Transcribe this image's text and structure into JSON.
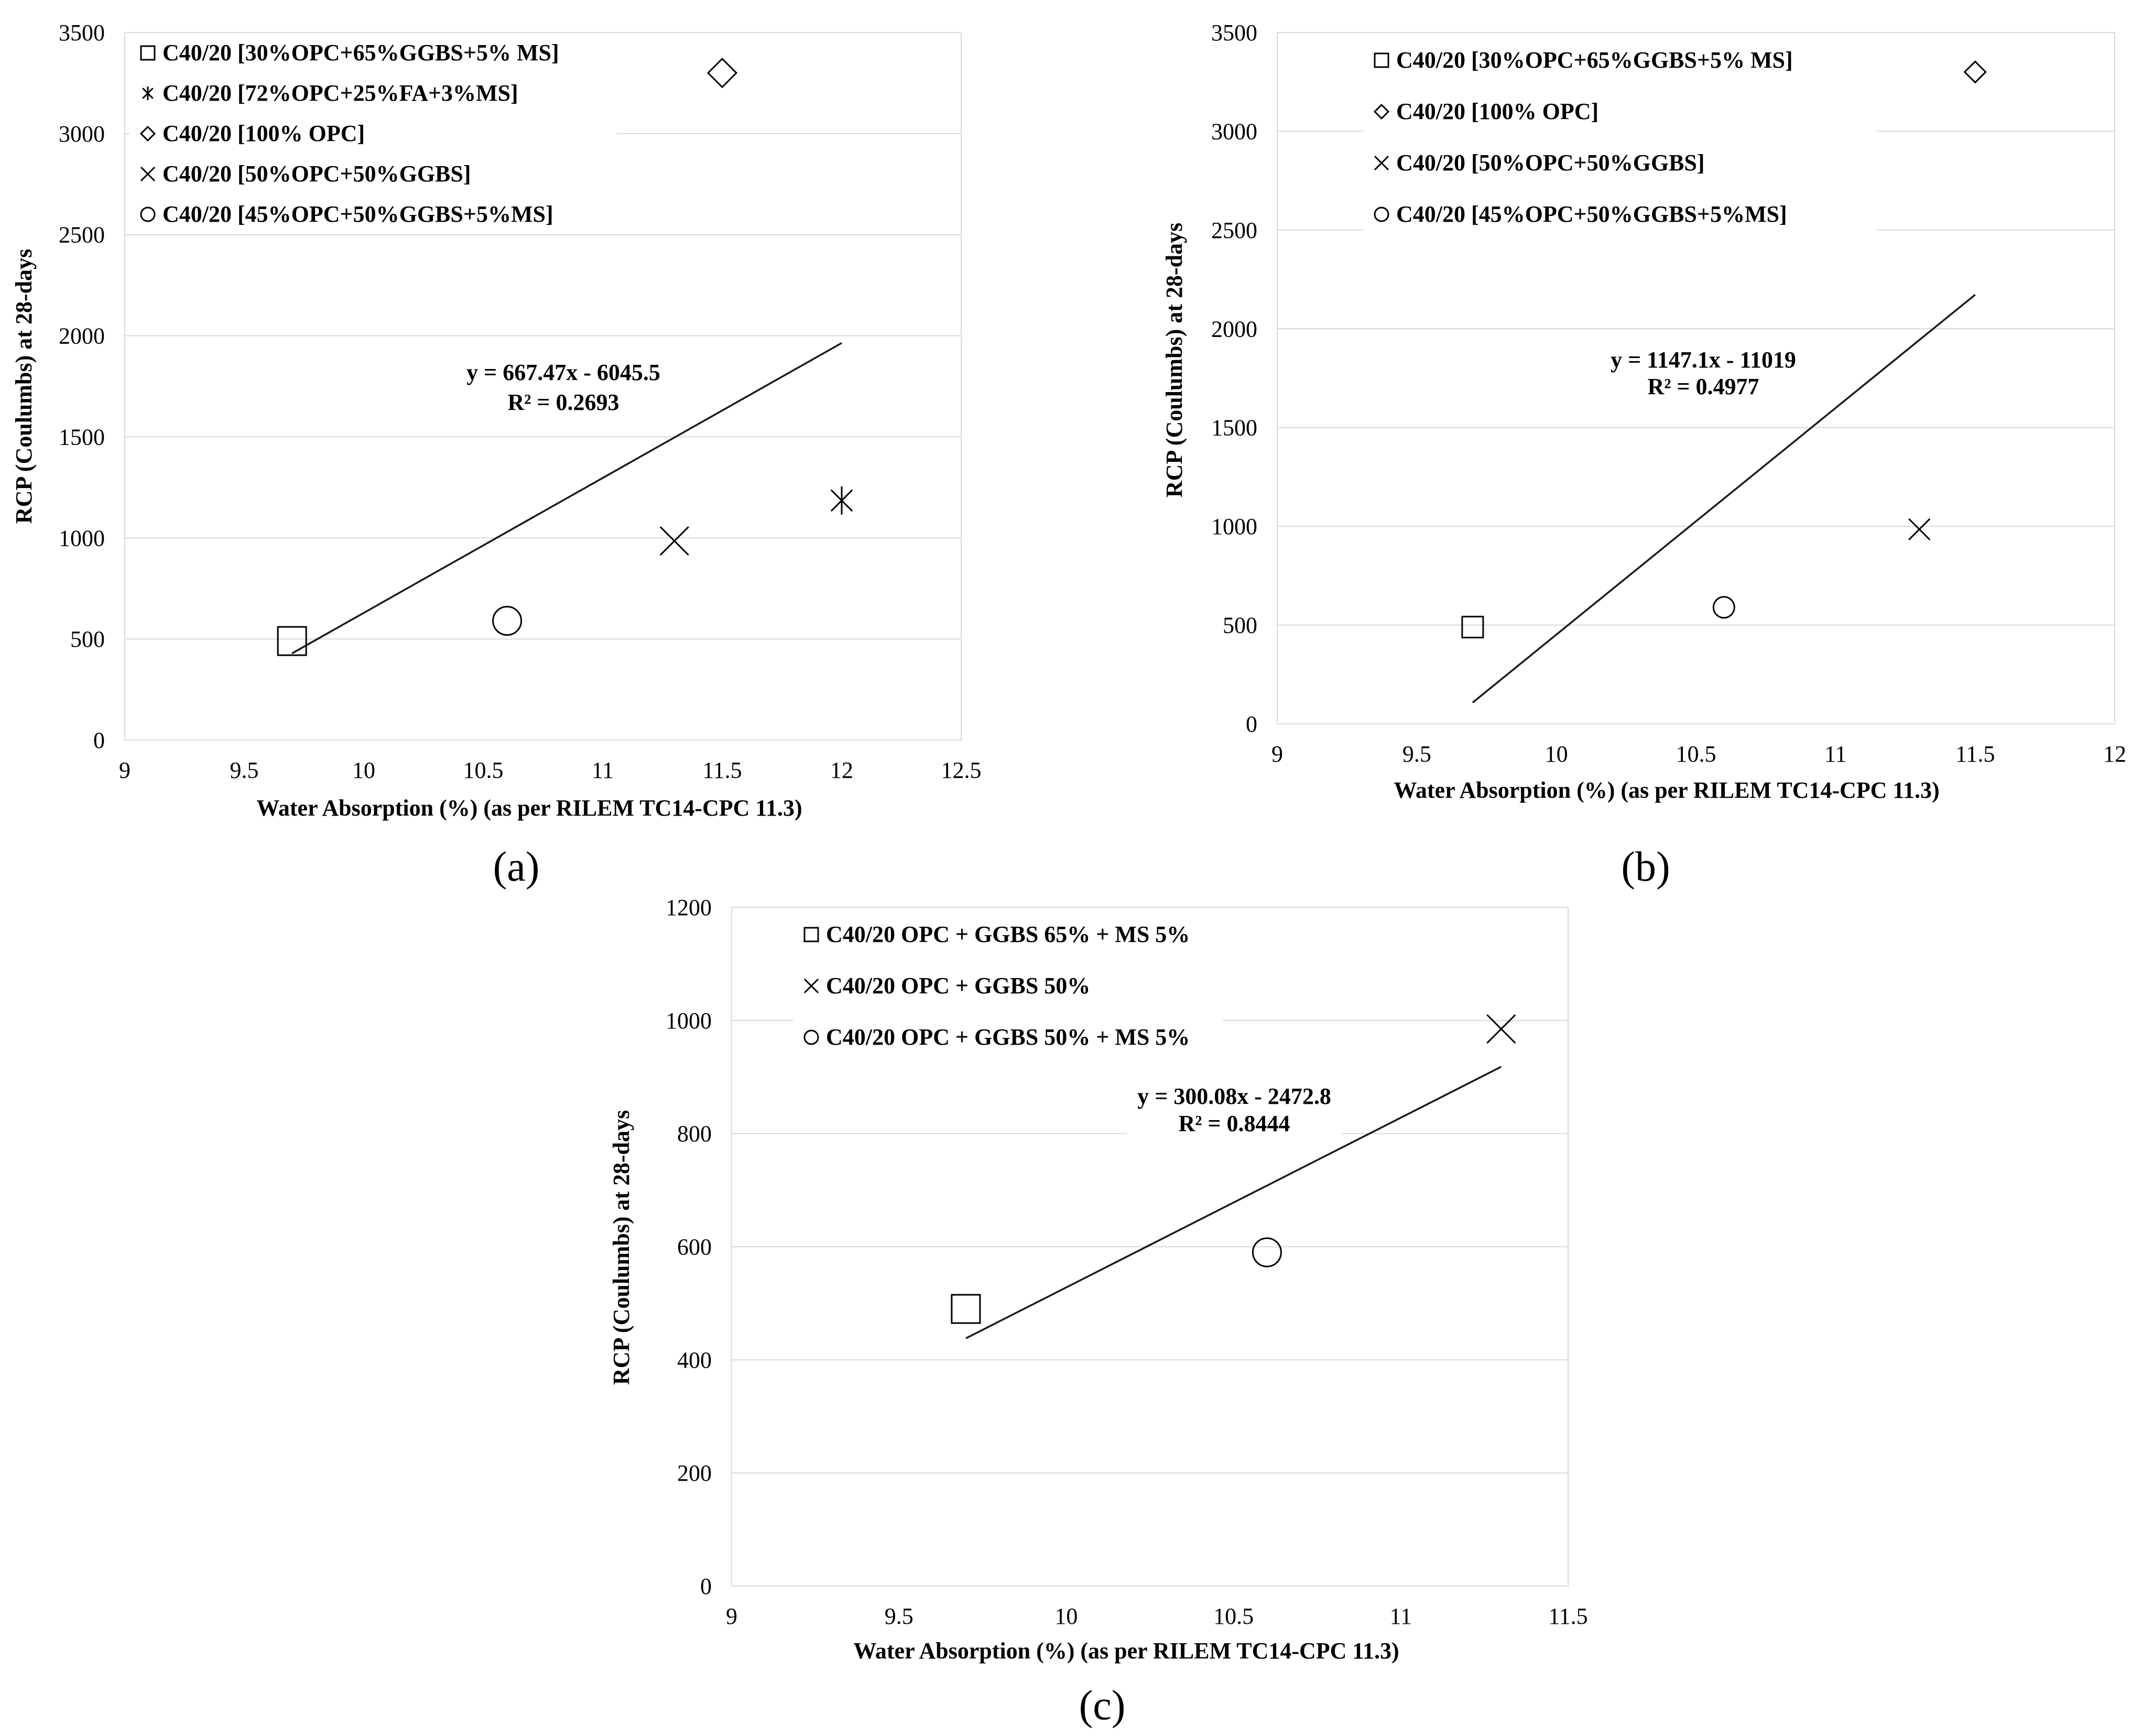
{
  "chart_data": [
    {
      "type": "scatter",
      "panel_label": "(a)",
      "xlabel": "Water Absorption (%) (as per RILEM TC14-CPC  11.3)",
      "ylabel": "RCP (Coulumbs) at 28-days",
      "xlim": [
        9,
        12.5
      ],
      "ylim": [
        0,
        3500
      ],
      "xticks": [
        "9",
        "9.5",
        "10",
        "10.5",
        "11",
        "11.5",
        "12",
        "12.5"
      ],
      "yticks": [
        "0",
        "500",
        "1000",
        "1500",
        "2000",
        "2500",
        "3000",
        "3500"
      ],
      "grid": true,
      "legend_position": "top-left",
      "series": [
        {
          "name": "C40/20 [30%OPC+65%GGBS+5% MS]",
          "marker": "square",
          "x": 9.7,
          "y": 490
        },
        {
          "name": "C40/20 [72%OPC+25%FA+3%MS]",
          "marker": "asterisk",
          "x": 12.0,
          "y": 1185
        },
        {
          "name": "C40/20 [100% OPC]",
          "marker": "diamond",
          "x": 11.5,
          "y": 3300
        },
        {
          "name": "C40/20 [50%OPC+50%GGBS]",
          "marker": "x",
          "x": 11.3,
          "y": 985
        },
        {
          "name": "C40/20 [45%OPC+50%GGBS+5%MS]",
          "marker": "circle",
          "x": 10.6,
          "y": 590
        }
      ],
      "trendline": {
        "slope": 667.47,
        "intercept": -6045.5,
        "x_start": 9.7,
        "x_end": 12.0
      },
      "equation": "y = 667.47x - 6045.5",
      "r_squared": "R² = 0.2693"
    },
    {
      "type": "scatter",
      "panel_label": "(b)",
      "xlabel": "Water Absorption (%) (as per RILEM TC14-CPC  11.3)",
      "ylabel": "RCP (Coulumbs) at 28-days",
      "xlim": [
        9,
        12
      ],
      "ylim": [
        0,
        3500
      ],
      "xticks": [
        "9",
        "9.5",
        "10",
        "10.5",
        "11",
        "11.5",
        "12"
      ],
      "yticks": [
        "0",
        "500",
        "1000",
        "1500",
        "2000",
        "2500",
        "3000",
        "3500"
      ],
      "grid": true,
      "legend_position": "top-left",
      "series": [
        {
          "name": "C40/20 [30%OPC+65%GGBS+5% MS]",
          "marker": "square",
          "x": 9.7,
          "y": 490
        },
        {
          "name": "C40/20 [100% OPC]",
          "marker": "diamond",
          "x": 11.5,
          "y": 3300
        },
        {
          "name": "C40/20 [50%OPC+50%GGBS]",
          "marker": "x",
          "x": 11.3,
          "y": 985
        },
        {
          "name": "C40/20 [45%OPC+50%GGBS+5%MS]",
          "marker": "circle",
          "x": 10.6,
          "y": 590
        }
      ],
      "trendline": {
        "slope": 1147.1,
        "intercept": -11019,
        "x_start": 9.7,
        "x_end": 11.5
      },
      "equation": "y = 1147.1x - 11019",
      "r_squared": "R² = 0.4977"
    },
    {
      "type": "scatter",
      "panel_label": "(c)",
      "xlabel": "Water Absorption (%) (as per RILEM TC14-CPC  11.3)",
      "ylabel": "RCP (Coulumbs) at 28-days",
      "xlim": [
        9,
        11.5
      ],
      "ylim": [
        0,
        1200
      ],
      "xticks": [
        "9",
        "9.5",
        "10",
        "10.5",
        "11",
        "11.5"
      ],
      "yticks": [
        "0",
        "200",
        "400",
        "600",
        "800",
        "1000",
        "1200"
      ],
      "grid": true,
      "legend_position": "top-left",
      "series": [
        {
          "name": "C40/20 OPC + GGBS 65% + MS 5%",
          "marker": "square",
          "x": 9.7,
          "y": 490
        },
        {
          "name": "C40/20 OPC + GGBS 50%",
          "marker": "x",
          "x": 11.3,
          "y": 985
        },
        {
          "name": "C40/20 OPC + GGBS 50% + MS 5%",
          "marker": "circle",
          "x": 10.6,
          "y": 590
        }
      ],
      "trendline": {
        "slope": 300.08,
        "intercept": -2472.8,
        "x_start": 9.7,
        "x_end": 11.3
      },
      "equation": "y = 300.08x - 2472.8",
      "r_squared": "R² = 0.8444"
    }
  ],
  "colors": {
    "axis": "#000000",
    "grid": "#d9d9d9",
    "plot_border": "#d9d9d9",
    "trendline": "#1a1a1a",
    "marker": "#000000"
  }
}
